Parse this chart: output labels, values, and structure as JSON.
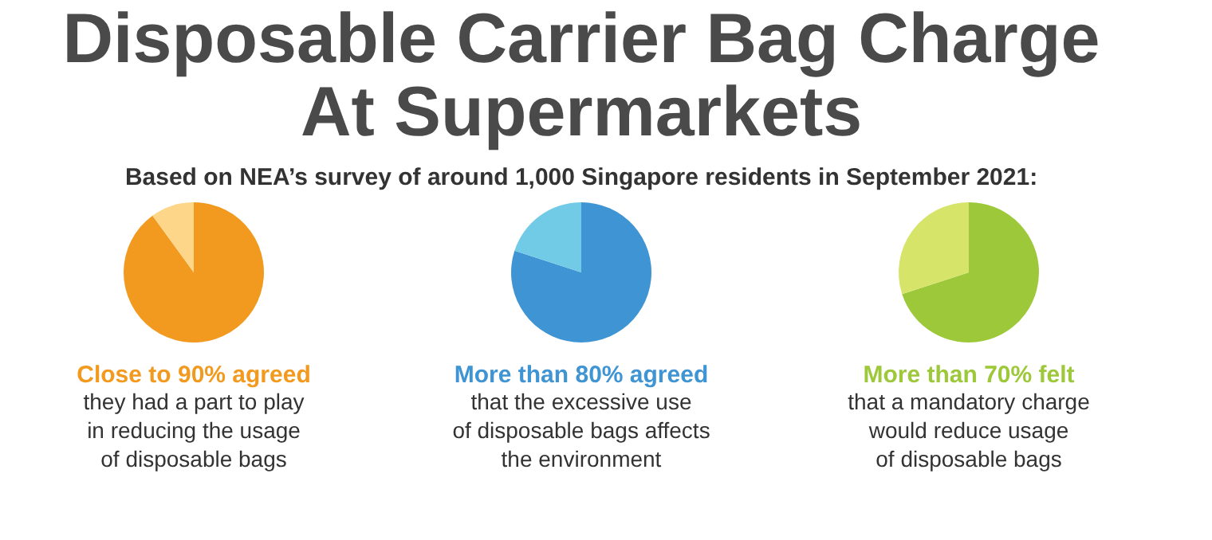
{
  "chart_data": [
    {
      "type": "pie",
      "title": [
        "Disposable Carrier Bag Charge",
        "At Supermarkets"
      ],
      "subtitle": "Based on NEA’s survey of around 1,000 Singapore residents in September 2021:",
      "categories": [
        null,
        null
      ],
      "values": [
        90,
        10
      ],
      "colors": [
        "#f29a1f",
        "#fdd68a"
      ],
      "legend": false,
      "annotations": [
        "Close to 90% agreed",
        "they had a part to play",
        "in reducing the usage",
        "of disposable bags"
      ]
    },
    {
      "type": "pie",
      "categories": [
        null,
        null
      ],
      "values": [
        80,
        20
      ],
      "colors": [
        "#3f94d3",
        "#72cbe6"
      ],
      "legend": false,
      "annotations": [
        "More than 80% agreed",
        "that the excessive use",
        "of disposable bags affects",
        "the environment"
      ]
    },
    {
      "type": "pie",
      "categories": [
        null,
        null
      ],
      "values": [
        70,
        30
      ],
      "colors": [
        "#9dc83a",
        "#d7e46a"
      ],
      "legend": false,
      "annotations": [
        "More than 70% felt",
        "that a mandatory charge",
        "would reduce usage",
        "of disposable bags"
      ]
    }
  ]
}
